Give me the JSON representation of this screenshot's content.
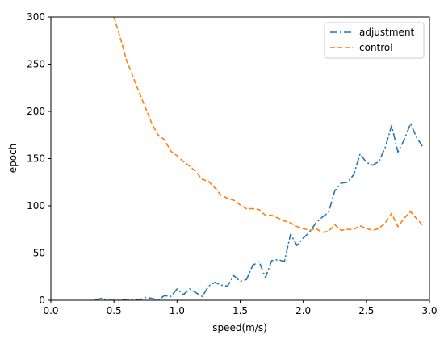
{
  "chart_data": {
    "type": "line",
    "title": "",
    "xlabel": "speed(m/s)",
    "ylabel": "epoch",
    "xlim": [
      0.0,
      3.0
    ],
    "ylim": [
      0,
      300
    ],
    "xticks": [
      0.0,
      0.5,
      1.0,
      1.5,
      2.0,
      2.5,
      3.0
    ],
    "xtick_labels": [
      "0.0",
      "0.5",
      "1.0",
      "1.5",
      "2.0",
      "2.5",
      "3.0"
    ],
    "yticks": [
      0,
      50,
      100,
      150,
      200,
      250,
      300
    ],
    "ytick_labels": [
      "0",
      "50",
      "100",
      "150",
      "200",
      "250",
      "300"
    ],
    "grid": false,
    "legend_position": "top-right",
    "series": [
      {
        "name": "adjustment",
        "color": "#1f77b4",
        "style": "dashdot",
        "x": [
          0.35,
          0.4,
          0.45,
          0.5,
          0.55,
          0.6,
          0.65,
          0.7,
          0.75,
          0.8,
          0.85,
          0.9,
          0.95,
          1.0,
          1.05,
          1.1,
          1.15,
          1.2,
          1.25,
          1.3,
          1.35,
          1.4,
          1.45,
          1.5,
          1.55,
          1.6,
          1.65,
          1.7,
          1.75,
          1.8,
          1.85,
          1.9,
          1.95,
          2.0,
          2.05,
          2.1,
          2.15,
          2.2,
          2.25,
          2.3,
          2.35,
          2.4,
          2.45,
          2.5,
          2.55,
          2.6,
          2.65,
          2.7,
          2.75,
          2.8,
          2.85,
          2.9,
          2.95
        ],
        "y": [
          0,
          2,
          0,
          0,
          1,
          0,
          1,
          0,
          3,
          2,
          0,
          5,
          4,
          12,
          6,
          12,
          8,
          4,
          15,
          19,
          16,
          15,
          26,
          20,
          22,
          37,
          41,
          24,
          42,
          43,
          41,
          70,
          58,
          66,
          72,
          82,
          88,
          93,
          116,
          124,
          125,
          133,
          155,
          146,
          143,
          147,
          162,
          185,
          157,
          170,
          187,
          172,
          162
        ]
      },
      {
        "name": "control",
        "color": "#ff7f0e",
        "style": "dashed",
        "x": [
          0.5,
          0.55,
          0.6,
          0.65,
          0.7,
          0.75,
          0.8,
          0.85,
          0.9,
          0.95,
          1.0,
          1.05,
          1.1,
          1.15,
          1.2,
          1.25,
          1.3,
          1.35,
          1.4,
          1.45,
          1.5,
          1.55,
          1.6,
          1.65,
          1.7,
          1.75,
          1.8,
          1.85,
          1.9,
          1.95,
          2.0,
          2.05,
          2.1,
          2.15,
          2.2,
          2.25,
          2.3,
          2.35,
          2.4,
          2.45,
          2.5,
          2.55,
          2.6,
          2.65,
          2.7,
          2.75,
          2.8,
          2.85,
          2.9,
          2.95
        ],
        "y": [
          300,
          278,
          254,
          237,
          220,
          204,
          187,
          175,
          170,
          158,
          153,
          147,
          142,
          136,
          128,
          126,
          119,
          111,
          108,
          106,
          101,
          97,
          97,
          96,
          90,
          90,
          87,
          84,
          82,
          78,
          76,
          74,
          76,
          72,
          73,
          80,
          74,
          75,
          75,
          79,
          76,
          74,
          76,
          82,
          92,
          78,
          87,
          94,
          86,
          79
        ]
      }
    ]
  }
}
